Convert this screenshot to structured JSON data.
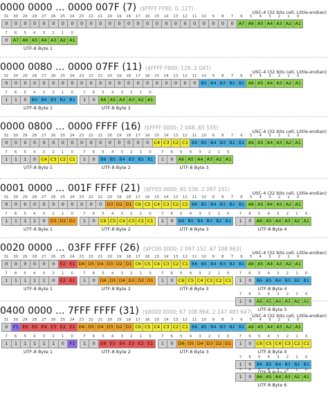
{
  "colors": {
    "fixed": "#d2d2d2",
    "A": "#8fd44a",
    "B": "#47b4e9",
    "C": "#f2ec2a",
    "D": "#f5a623",
    "E": "#ee5454",
    "F": "#8f6ce8",
    "legend_gray": "#a0a0a0"
  },
  "common": {
    "cell_note": "USC-4 (32 bits cell, Little-endian)",
    "bit_numbers": [
      "31",
      "30",
      "29",
      "28",
      "27",
      "26",
      "25",
      "24",
      "23",
      "22",
      "21",
      "20",
      "19",
      "18",
      "17",
      "16",
      "15",
      "14",
      "13",
      "12",
      "11",
      "10",
      "9",
      "8",
      "7",
      "6",
      "5",
      "4",
      "3",
      "2",
      "1",
      "0"
    ],
    "byte_bit_numbers": [
      "7",
      "6",
      "5",
      "4",
      "3",
      "2",
      "1",
      "0"
    ]
  },
  "sections": [
    {
      "title": "0000 0000 ... 0000 007F (7)",
      "range": "($FFFF FF80; 0..127)",
      "ucs": [
        "0",
        "0",
        "0",
        "0",
        "0",
        "0",
        "0",
        "0",
        "0",
        "0",
        "0",
        "0",
        "0",
        "0",
        "0",
        "0",
        "0",
        "0",
        "0",
        "0",
        "0",
        "0",
        "0",
        "0",
        "0",
        "A7",
        "A6",
        "A5",
        "A4",
        "A3",
        "A2",
        "A1"
      ],
      "ucs_colors": [
        "fixed",
        "fixed",
        "fixed",
        "fixed",
        "fixed",
        "fixed",
        "fixed",
        "fixed",
        "fixed",
        "fixed",
        "fixed",
        "fixed",
        "fixed",
        "fixed",
        "fixed",
        "fixed",
        "fixed",
        "fixed",
        "fixed",
        "fixed",
        "fixed",
        "fixed",
        "fixed",
        "fixed",
        "fixed",
        "A",
        "A",
        "A",
        "A",
        "A",
        "A",
        "A"
      ],
      "bytes": [
        {
          "label": "UTF-8 Byte 1",
          "cells": [
            "0",
            "A7",
            "A6",
            "A5",
            "A4",
            "A3",
            "A2",
            "A1"
          ],
          "colors": [
            "fixed",
            "A",
            "A",
            "A",
            "A",
            "A",
            "A",
            "A"
          ]
        }
      ]
    },
    {
      "title": "0000 0080 ... 0000 07FF (11)",
      "range": "($FFFF F800; 128..2 047)",
      "ucs": [
        "0",
        "0",
        "0",
        "0",
        "0",
        "0",
        "0",
        "0",
        "0",
        "0",
        "0",
        "0",
        "0",
        "0",
        "0",
        "0",
        "0",
        "0",
        "0",
        "0",
        "0",
        "B5",
        "B4",
        "B3",
        "B2",
        "B1",
        "A6",
        "A5",
        "A4",
        "A3",
        "A2",
        "A1"
      ],
      "ucs_colors": [
        "fixed",
        "fixed",
        "fixed",
        "fixed",
        "fixed",
        "fixed",
        "fixed",
        "fixed",
        "fixed",
        "fixed",
        "fixed",
        "fixed",
        "fixed",
        "fixed",
        "fixed",
        "fixed",
        "fixed",
        "fixed",
        "fixed",
        "fixed",
        "fixed",
        "B",
        "B",
        "B",
        "B",
        "B",
        "A",
        "A",
        "A",
        "A",
        "A",
        "A"
      ],
      "bytes": [
        {
          "label": "UTF-8 Byte 1",
          "cells": [
            "1",
            "1",
            "0",
            "B5",
            "B4",
            "B3",
            "B2",
            "B1"
          ],
          "colors": [
            "fixed",
            "fixed",
            "fixed",
            "B",
            "B",
            "B",
            "B",
            "B"
          ]
        },
        {
          "label": "UTF-8 Byte 2",
          "cells": [
            "1",
            "0",
            "A6",
            "A5",
            "A4",
            "A3",
            "A2",
            "A1"
          ],
          "colors": [
            "fixed",
            "fixed",
            "A",
            "A",
            "A",
            "A",
            "A",
            "A"
          ]
        }
      ]
    },
    {
      "title": "0000 0800 ... 0000 FFFF (16)",
      "range": "($FFFF 0000; 2 048..65 535)",
      "ucs": [
        "0",
        "0",
        "0",
        "0",
        "0",
        "0",
        "0",
        "0",
        "0",
        "0",
        "0",
        "0",
        "0",
        "0",
        "0",
        "0",
        "C4",
        "C3",
        "C2",
        "C1",
        "B6",
        "B5",
        "B4",
        "B3",
        "B2",
        "B1",
        "A6",
        "A5",
        "A4",
        "A3",
        "A2",
        "A1"
      ],
      "ucs_colors": [
        "fixed",
        "fixed",
        "fixed",
        "fixed",
        "fixed",
        "fixed",
        "fixed",
        "fixed",
        "fixed",
        "fixed",
        "fixed",
        "fixed",
        "fixed",
        "fixed",
        "fixed",
        "fixed",
        "C",
        "C",
        "C",
        "C",
        "B",
        "B",
        "B",
        "B",
        "B",
        "B",
        "A",
        "A",
        "A",
        "A",
        "A",
        "A"
      ],
      "bytes": [
        {
          "label": "UTF-8 Byte 1",
          "cells": [
            "1",
            "1",
            "1",
            "0",
            "C4",
            "C3",
            "C2",
            "C1"
          ],
          "colors": [
            "fixed",
            "fixed",
            "fixed",
            "fixed",
            "C",
            "C",
            "C",
            "C"
          ]
        },
        {
          "label": "UTF-8 Byte 2",
          "cells": [
            "1",
            "0",
            "B6",
            "B5",
            "B4",
            "B3",
            "B2",
            "B1"
          ],
          "colors": [
            "fixed",
            "fixed",
            "B",
            "B",
            "B",
            "B",
            "B",
            "B"
          ]
        },
        {
          "label": "UTF-8 Byte 3",
          "cells": [
            "1",
            "0",
            "A6",
            "A5",
            "A4",
            "A3",
            "A2",
            "A1"
          ],
          "colors": [
            "fixed",
            "fixed",
            "A",
            "A",
            "A",
            "A",
            "A",
            "A"
          ]
        }
      ]
    },
    {
      "title": "0001 0000 ... 001F FFFF (21)",
      "range": "($FFE0 0000; 65 536..2 097 151)",
      "ucs": [
        "0",
        "0",
        "0",
        "0",
        "0",
        "0",
        "0",
        "0",
        "0",
        "0",
        "0",
        "D3",
        "D2",
        "D1",
        "C6",
        "C5",
        "C4",
        "C3",
        "C2",
        "C1",
        "B6",
        "B5",
        "B4",
        "B3",
        "B2",
        "B1",
        "A6",
        "A5",
        "A4",
        "A3",
        "A2",
        "A1"
      ],
      "ucs_colors": [
        "fixed",
        "fixed",
        "fixed",
        "fixed",
        "fixed",
        "fixed",
        "fixed",
        "fixed",
        "fixed",
        "fixed",
        "fixed",
        "D",
        "D",
        "D",
        "C",
        "C",
        "C",
        "C",
        "C",
        "C",
        "B",
        "B",
        "B",
        "B",
        "B",
        "B",
        "A",
        "A",
        "A",
        "A",
        "A",
        "A"
      ],
      "bytes": [
        {
          "label": "UTF-8 Byte 1",
          "cells": [
            "1",
            "1",
            "1",
            "1",
            "0",
            "D3",
            "D2",
            "D1"
          ],
          "colors": [
            "fixed",
            "fixed",
            "fixed",
            "fixed",
            "fixed",
            "D",
            "D",
            "D"
          ]
        },
        {
          "label": "UTF-8 Byte 2",
          "cells": [
            "1",
            "0",
            "C6",
            "C5",
            "C4",
            "C3",
            "C2",
            "C1"
          ],
          "colors": [
            "fixed",
            "fixed",
            "C",
            "C",
            "C",
            "C",
            "C",
            "C"
          ]
        },
        {
          "label": "UTF-8 Byte 3",
          "cells": [
            "1",
            "0",
            "B6",
            "B5",
            "B4",
            "B3",
            "B2",
            "B1"
          ],
          "colors": [
            "fixed",
            "fixed",
            "B",
            "B",
            "B",
            "B",
            "B",
            "B"
          ]
        },
        {
          "label": "UTF-8 Byte 4",
          "cells": [
            "1",
            "0",
            "A6",
            "A5",
            "A4",
            "A3",
            "A2",
            "A1"
          ],
          "colors": [
            "fixed",
            "fixed",
            "A",
            "A",
            "A",
            "A",
            "A",
            "A"
          ]
        }
      ]
    },
    {
      "title": "0020 0000 ... 03FF FFFF (26)",
      "range": "($FC00 0000; 2 097 152..67 108 863)",
      "ucs": [
        "0",
        "0",
        "0",
        "0",
        "0",
        "0",
        "E2",
        "E1",
        "D6",
        "D5",
        "D4",
        "D3",
        "D2",
        "D1",
        "C6",
        "C5",
        "C4",
        "C3",
        "C2",
        "C1",
        "B6",
        "B5",
        "B4",
        "B3",
        "B2",
        "B1",
        "A6",
        "A5",
        "A4",
        "A3",
        "A2",
        "A1"
      ],
      "ucs_colors": [
        "fixed",
        "fixed",
        "fixed",
        "fixed",
        "fixed",
        "fixed",
        "E",
        "E",
        "D",
        "D",
        "D",
        "D",
        "D",
        "D",
        "C",
        "C",
        "C",
        "C",
        "C",
        "C",
        "B",
        "B",
        "B",
        "B",
        "B",
        "B",
        "A",
        "A",
        "A",
        "A",
        "A",
        "A"
      ],
      "bytes": [
        {
          "label": "UTF-8 Byte 1",
          "cells": [
            "1",
            "1",
            "1",
            "1",
            "1",
            "0",
            "E2",
            "E1"
          ],
          "colors": [
            "fixed",
            "fixed",
            "fixed",
            "fixed",
            "fixed",
            "fixed",
            "E",
            "E"
          ]
        },
        {
          "label": "UTF-8 Byte 2",
          "cells": [
            "1",
            "0",
            "D6",
            "D5",
            "D4",
            "D3",
            "D2",
            "D1"
          ],
          "colors": [
            "fixed",
            "fixed",
            "D",
            "D",
            "D",
            "D",
            "D",
            "D"
          ]
        },
        {
          "label": "UTF-8 Byte 3",
          "cells": [
            "1",
            "0",
            "C6",
            "C5",
            "C4",
            "C3",
            "C2",
            "C1"
          ],
          "colors": [
            "fixed",
            "fixed",
            "C",
            "C",
            "C",
            "C",
            "C",
            "C"
          ]
        },
        {
          "label": "UTF-8 Byte 4",
          "cells": [
            "1",
            "0",
            "B6",
            "B5",
            "B4",
            "B3",
            "B2",
            "B1"
          ],
          "colors": [
            "fixed",
            "fixed",
            "B",
            "B",
            "B",
            "B",
            "B",
            "B"
          ]
        },
        {
          "label": "UTF-8 Byte 5",
          "cells": [
            "1",
            "0",
            "A6",
            "A5",
            "A4",
            "A3",
            "A2",
            "A1"
          ],
          "colors": [
            "fixed",
            "fixed",
            "A",
            "A",
            "A",
            "A",
            "A",
            "A"
          ]
        }
      ]
    },
    {
      "title": "0400 0000 ... 7FFF FFFF (31)",
      "range": "($8000 0000; 67 108 864..2 147 483 647)",
      "ucs": [
        "0",
        "F1",
        "E6",
        "E5",
        "E4",
        "E3",
        "E2",
        "E1",
        "D6",
        "D5",
        "D4",
        "D3",
        "D2",
        "D1",
        "C6",
        "C5",
        "C4",
        "C3",
        "C2",
        "C1",
        "B6",
        "B5",
        "B4",
        "B3",
        "B2",
        "B1",
        "A6",
        "A5",
        "A4",
        "A3",
        "A2",
        "A1"
      ],
      "ucs_colors": [
        "fixed",
        "F",
        "E",
        "E",
        "E",
        "E",
        "E",
        "E",
        "D",
        "D",
        "D",
        "D",
        "D",
        "D",
        "C",
        "C",
        "C",
        "C",
        "C",
        "C",
        "B",
        "B",
        "B",
        "B",
        "B",
        "B",
        "A",
        "A",
        "A",
        "A",
        "A",
        "A"
      ],
      "bytes": [
        {
          "label": "UTF-8 Byte 1",
          "cells": [
            "1",
            "1",
            "1",
            "1",
            "1",
            "1",
            "0",
            "F1"
          ],
          "colors": [
            "fixed",
            "fixed",
            "fixed",
            "fixed",
            "fixed",
            "fixed",
            "fixed",
            "F"
          ]
        },
        {
          "label": "UTF-8 Byte 2",
          "cells": [
            "1",
            "0",
            "E6",
            "E5",
            "E4",
            "E3",
            "E2",
            "E1"
          ],
          "colors": [
            "fixed",
            "fixed",
            "E",
            "E",
            "E",
            "E",
            "E",
            "E"
          ]
        },
        {
          "label": "UTF-8 Byte 3",
          "cells": [
            "1",
            "0",
            "D6",
            "D5",
            "D4",
            "D3",
            "D2",
            "D1"
          ],
          "colors": [
            "fixed",
            "fixed",
            "D",
            "D",
            "D",
            "D",
            "D",
            "D"
          ]
        },
        {
          "label": "UTF-8 Byte 4",
          "cells": [
            "1",
            "0",
            "C6",
            "C5",
            "C4",
            "C3",
            "C2",
            "C1"
          ],
          "colors": [
            "fixed",
            "fixed",
            "C",
            "C",
            "C",
            "C",
            "C",
            "C"
          ]
        },
        {
          "label": "UTF-8 Byte 5",
          "cells": [
            "1",
            "0",
            "B6",
            "B5",
            "B4",
            "B3",
            "B2",
            "B1"
          ],
          "colors": [
            "fixed",
            "fixed",
            "B",
            "B",
            "B",
            "B",
            "B",
            "B"
          ]
        },
        {
          "label": "UTF-8 Byte 6",
          "cells": [
            "1",
            "0",
            "A6",
            "A5",
            "A4",
            "A3",
            "A2",
            "A1"
          ],
          "colors": [
            "fixed",
            "fixed",
            "A",
            "A",
            "A",
            "A",
            "A",
            "A"
          ]
        }
      ]
    }
  ]
}
